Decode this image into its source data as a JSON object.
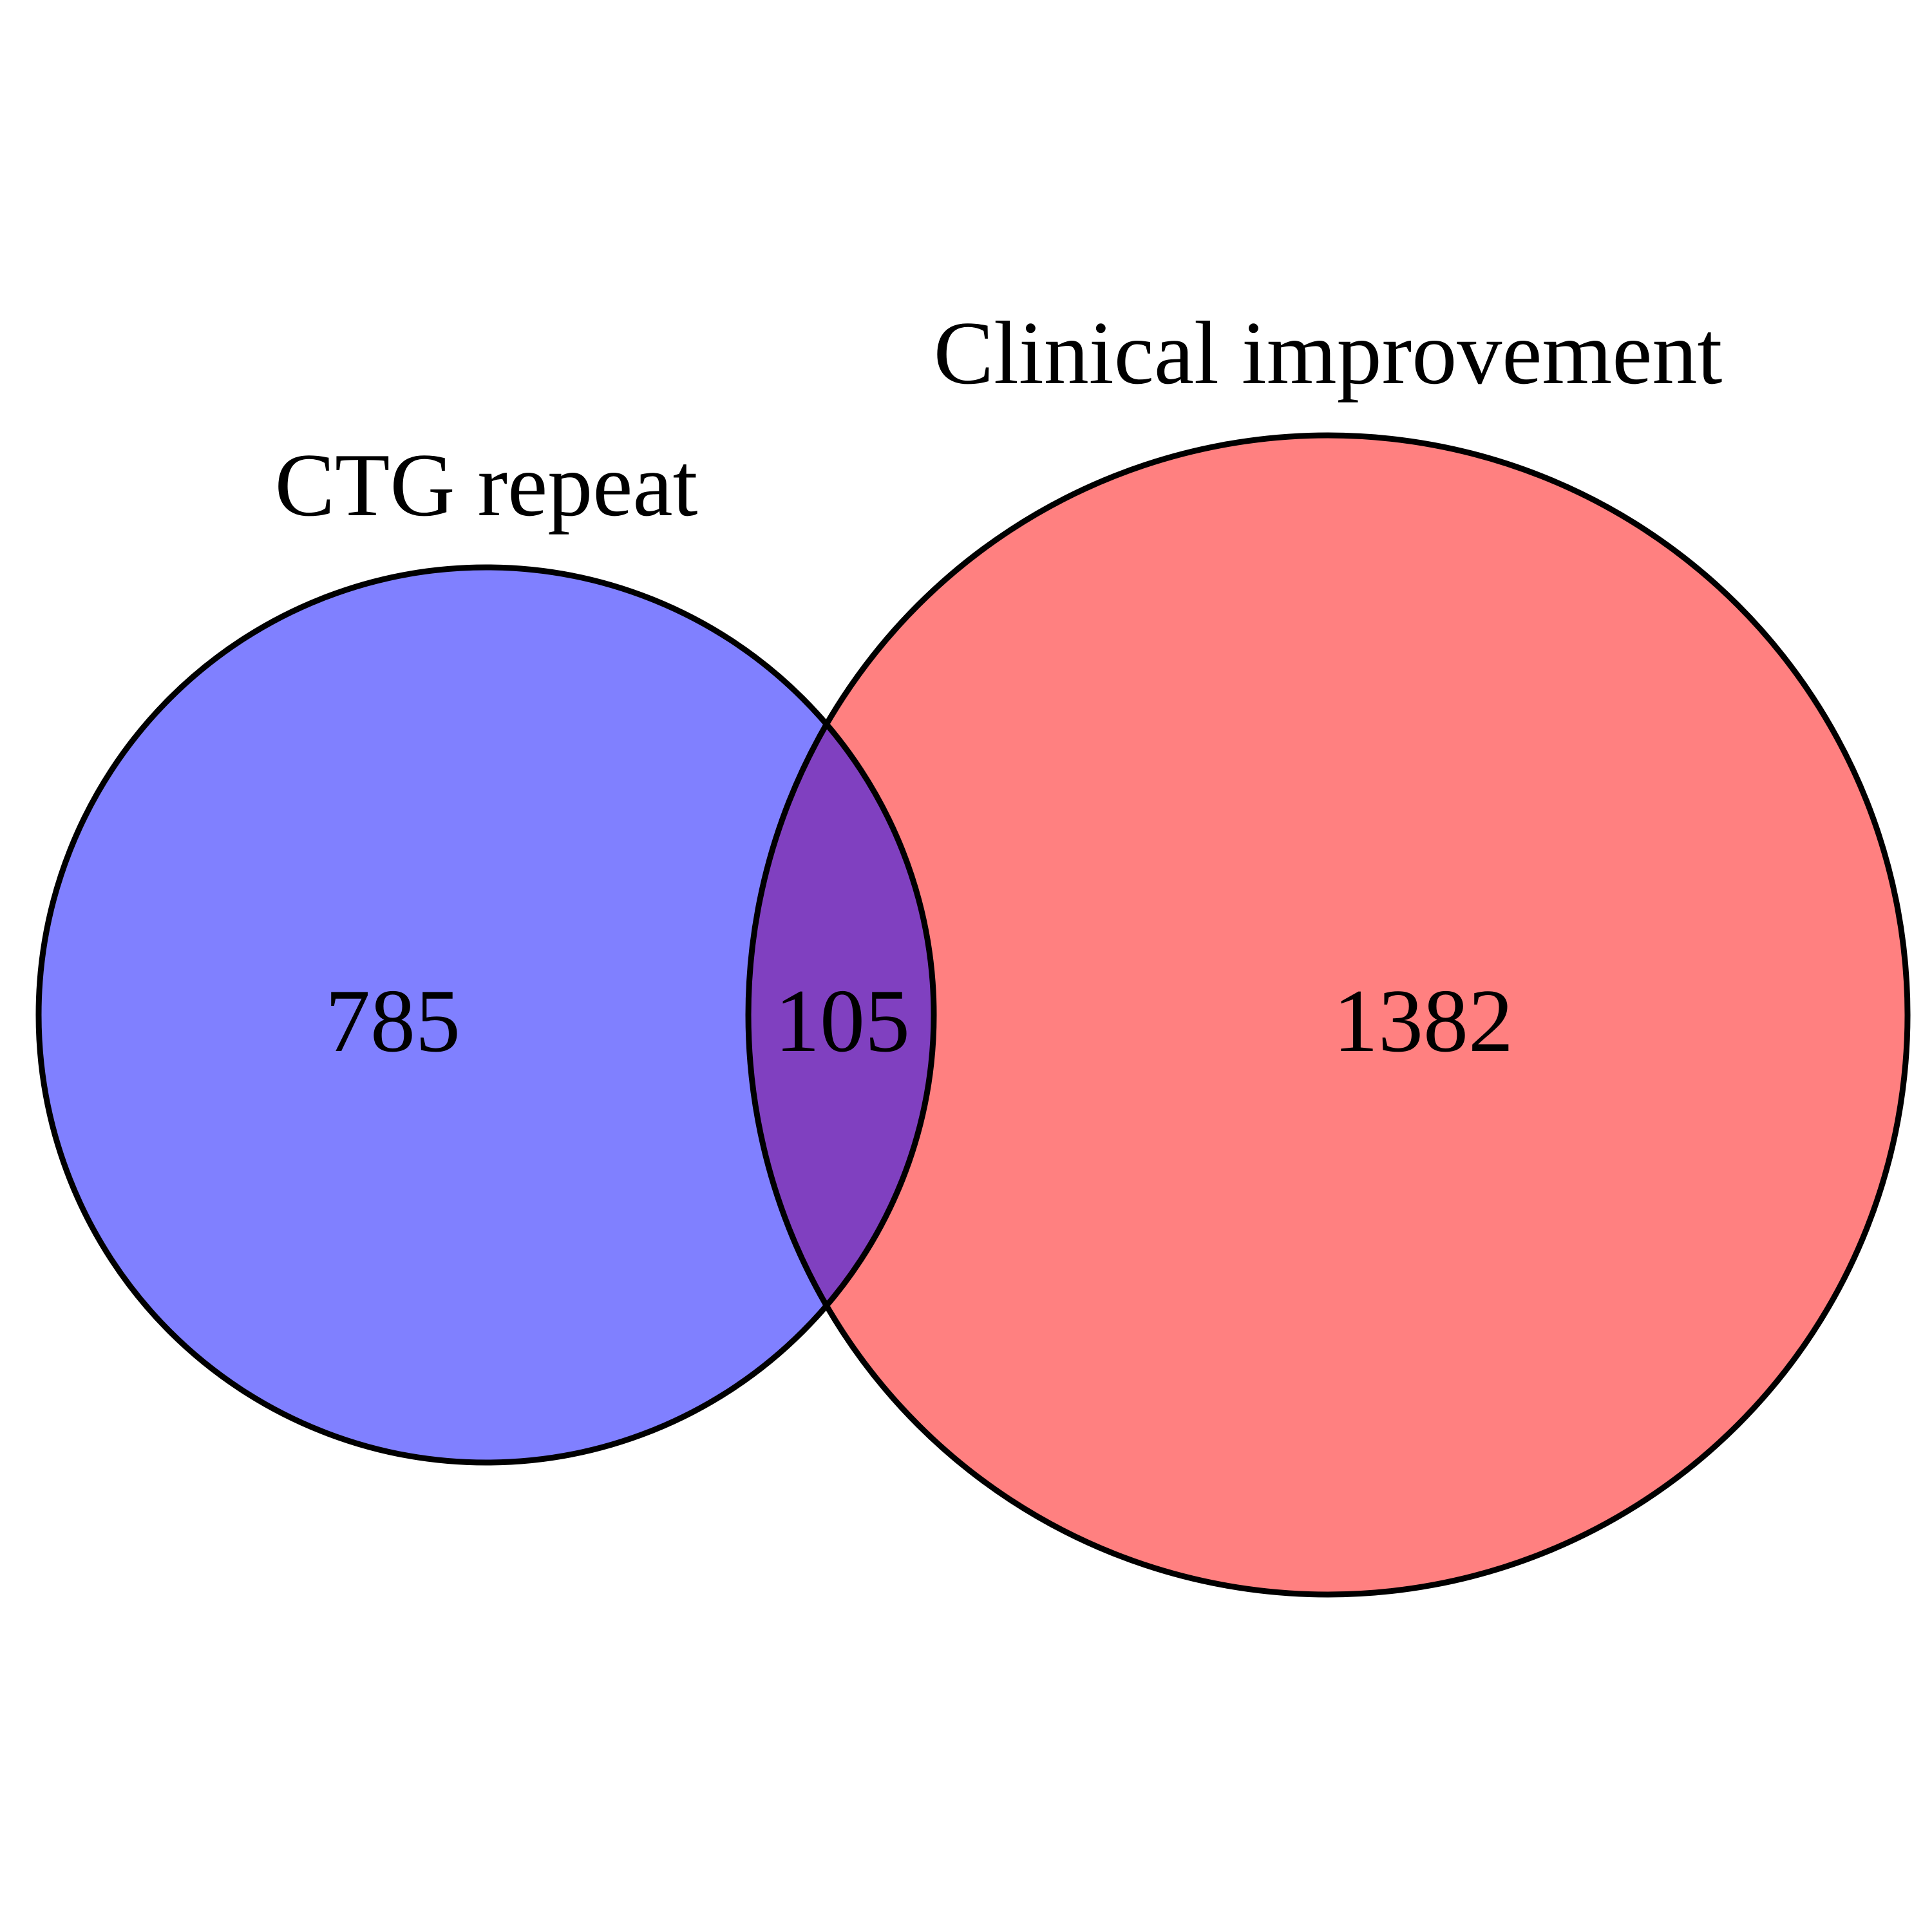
{
  "diagram": {
    "type": "venn",
    "sets": [
      {
        "label": "CTG repeat",
        "only_count": "785",
        "fill": "#8080FF"
      },
      {
        "label": "Clinical improvement",
        "only_count": "1382",
        "fill": "#FF8080"
      }
    ],
    "intersection": {
      "count": "105",
      "fill": "#8040C0"
    }
  }
}
